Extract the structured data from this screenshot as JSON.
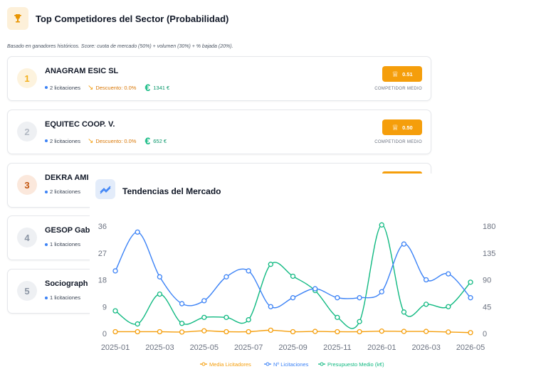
{
  "header": {
    "title": "Top Competidores del Sector (Probabilidad)",
    "icon": "trophy-icon"
  },
  "subtitle": "Basado en ganadores históricos. Score: cuota de mercado (50%) + volumen (30%) + % bajada (20%).",
  "competitors": [
    {
      "rank": "1",
      "name": "ANAGRAM ESIC SL",
      "licitaciones": "2 licitaciones",
      "descuento": "Descuento: 0.0%",
      "importe": "1341 €",
      "score": "0.51",
      "label": "COMPETIDOR MEDIO"
    },
    {
      "rank": "2",
      "name": "EQUITEC COOP. V.",
      "licitaciones": "2 licitaciones",
      "descuento": "Descuento: 0.0%",
      "importe": "652 €",
      "score": "0.50",
      "label": "COMPETIDOR MEDIO"
    },
    {
      "rank": "3",
      "name": "DEKRA AMI",
      "licitaciones": "2 licitaciones"
    },
    {
      "rank": "4",
      "name": "GESOP Gab",
      "licitaciones": "1 licitaciones"
    },
    {
      "rank": "5",
      "name": "Sociograph",
      "licitaciones": "1 licitaciones"
    }
  ],
  "market": {
    "title": "Tendencias del Mercado",
    "icon": "trending-up-icon"
  },
  "chart_data": {
    "type": "line",
    "x": [
      "2025-01",
      "2025-02",
      "2025-03",
      "2025-04",
      "2025-05",
      "2025-06",
      "2025-07",
      "2025-08",
      "2025-09",
      "2025-10",
      "2025-11",
      "2025-12",
      "2026-01",
      "2026-02",
      "2026-03",
      "2026-04",
      "2026-05"
    ],
    "x_tick_labels": [
      "2025-01",
      "2025-03",
      "2025-05",
      "2025-07",
      "2025-09",
      "2025-11",
      "2026-01",
      "2026-03",
      "2026-05"
    ],
    "y_left": {
      "ticks": [
        "0",
        "9",
        "18",
        "27",
        "36"
      ],
      "range": [
        0,
        36
      ]
    },
    "y_right": {
      "ticks": [
        "0",
        "45",
        "90",
        "135",
        "180"
      ],
      "range": [
        0,
        180
      ]
    },
    "grid": false,
    "legend_position": "bottom",
    "series": [
      {
        "name": "Media Licitadores",
        "axis": "left",
        "color": "#f59e0b",
        "values": [
          0.6,
          0.6,
          0.6,
          0.5,
          0.9,
          0.6,
          0.6,
          1.1,
          0.6,
          0.7,
          0.6,
          0.6,
          0.8,
          0.7,
          0.7,
          0.5,
          0.3
        ]
      },
      {
        "name": "Nº Licitaciones",
        "axis": "left",
        "color": "#3b82f6",
        "values": [
          21,
          34,
          19,
          10,
          11,
          19,
          21,
          9,
          12,
          15,
          12,
          12,
          14,
          30,
          18,
          20,
          12
        ]
      },
      {
        "name": "Presupuesto Medio (k€)",
        "axis": "right",
        "color": "#10b981",
        "values": [
          38,
          16,
          66,
          17,
          27,
          27,
          23,
          116,
          96,
          72,
          27,
          20,
          182,
          36,
          49,
          45,
          86
        ]
      }
    ]
  }
}
